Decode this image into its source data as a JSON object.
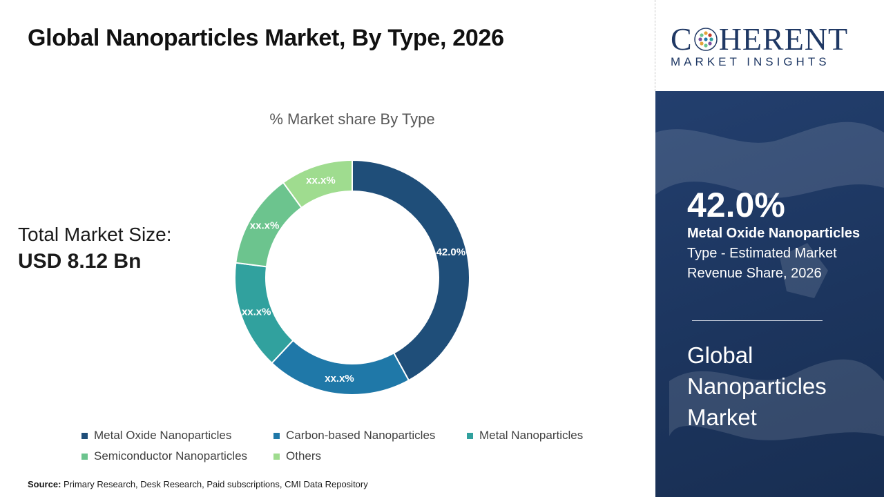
{
  "header": {
    "title": "Global Nanoparticles Market, By Type, 2026"
  },
  "total": {
    "label": "Total Market Size:",
    "value": "USD 8.12 Bn"
  },
  "chart_data": {
    "type": "pie",
    "subtype": "donut",
    "title": "% Market share By Type",
    "categories": [
      "Metal Oxide Nanoparticles",
      "Carbon-based Nanoparticles",
      "Metal Nanoparticles",
      "Semiconductor Nanoparticles",
      "Others"
    ],
    "values": [
      42.0,
      20.0,
      15.0,
      13.0,
      10.0
    ],
    "data_labels": [
      "42.0%",
      "xx.x%",
      "xx.x%",
      "xx.x%",
      "xx.x%"
    ],
    "colors": [
      "#1f4e79",
      "#1f78a8",
      "#31a19e",
      "#6cc48e",
      "#9fdc8f"
    ],
    "legend_position": "bottom"
  },
  "source": {
    "label": "Source:",
    "text": "Primary Research, Desk Research, Paid subscriptions, CMI Data Repository"
  },
  "brand": {
    "logo_first": "C",
    "logo_rest": "HERENT",
    "logo_sub": "MARKET INSIGHTS",
    "color": "#1f3864"
  },
  "highlight": {
    "value": "42.0%",
    "segment_bold": "Metal Oxide Nanoparticles",
    "segment_rest": " Type - Estimated Market Revenue Share, 2026",
    "market_name": "Global Nanoparticles Market",
    "panel_color": "#1f3864"
  }
}
